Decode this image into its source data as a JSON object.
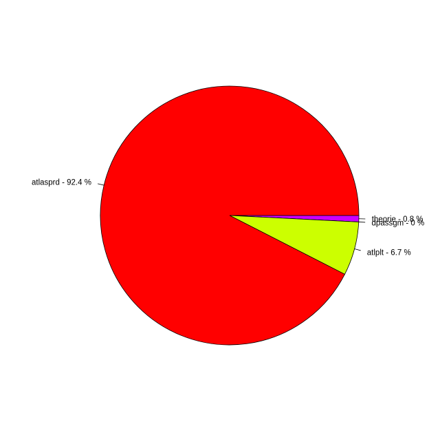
{
  "chart_data": {
    "type": "pie",
    "title": "",
    "slices": [
      {
        "label": "theorie - 0.8 %",
        "value": 0.8,
        "color": "#cc00ff"
      },
      {
        "label": "dpassgm - 0 %",
        "value": 0.0,
        "color": "#00ff66"
      },
      {
        "label": "atlplt - 6.7 %",
        "value": 6.7,
        "color": "#ccff00"
      },
      {
        "label": "atlasprd - 92.4 %",
        "value": 92.4,
        "color": "#ff0000"
      }
    ],
    "start_angle_deg": 0,
    "direction": "clockwise"
  }
}
